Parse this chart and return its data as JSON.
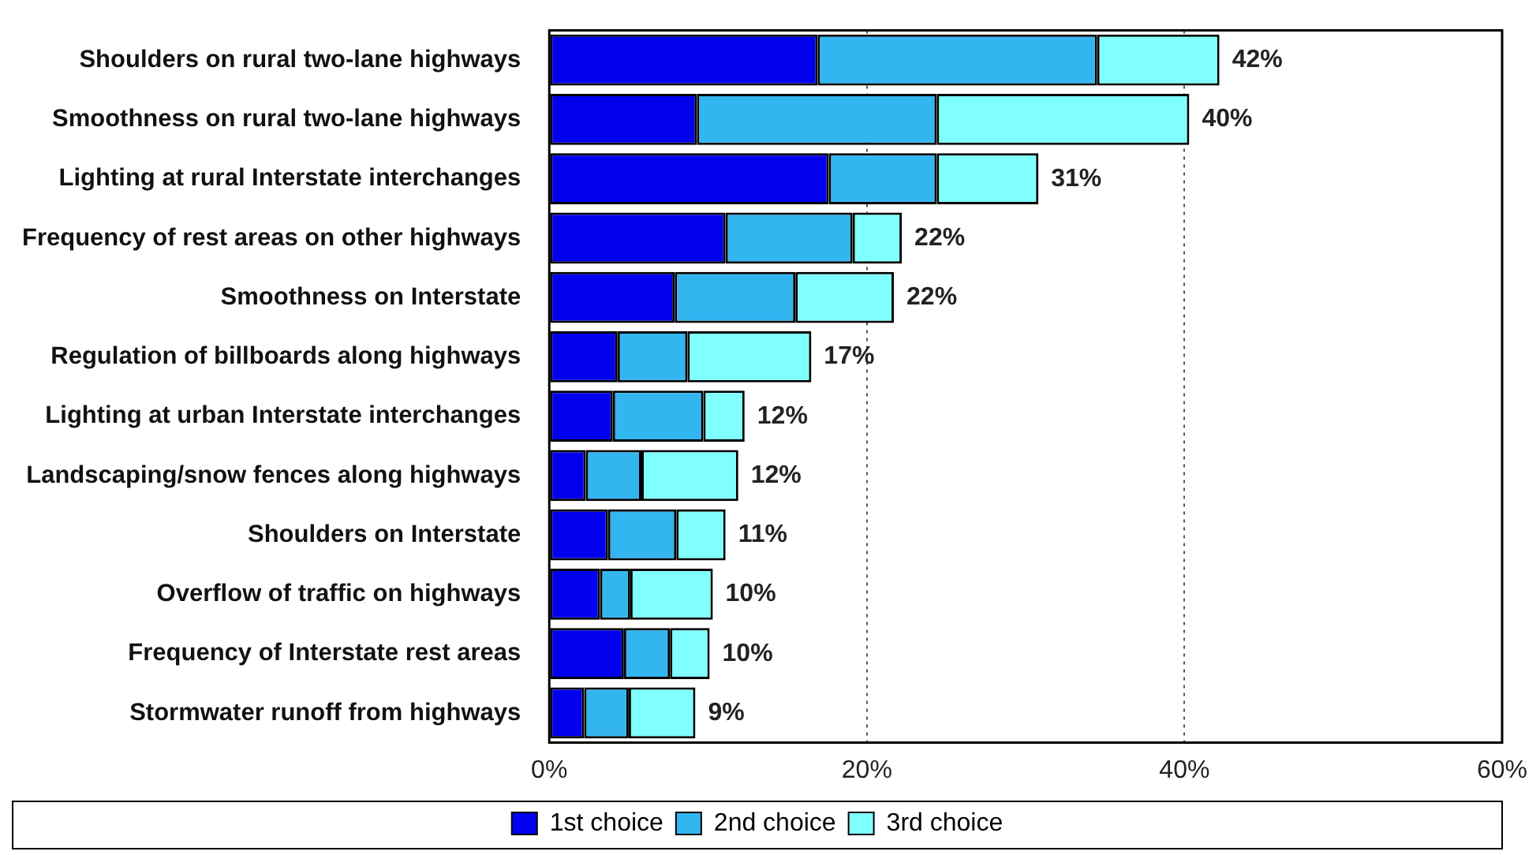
{
  "chart_data": {
    "type": "bar",
    "orientation": "horizontal",
    "stacked": true,
    "categories": [
      "Shoulders on rural two-lane highways",
      "Smoothness on rural two-lane highways",
      "Lighting at rural Interstate interchanges",
      "Frequency of rest areas on other highways",
      "Smoothness on Interstate",
      "Regulation of billboards along highways",
      "Lighting at urban Interstate interchanges",
      "Landscaping/snow fences along highways",
      "Shoulders on Interstate",
      "Overflow of traffic on highways",
      "Frequency of Interstate rest areas",
      "Stormwater runoff from highways"
    ],
    "series": [
      {
        "name": "1st choice",
        "color": "#0000ee",
        "values": [
          16.9,
          9.3,
          17.6,
          11.1,
          7.9,
          4.3,
          4.0,
          2.3,
          3.7,
          3.2,
          4.7,
          2.2
        ]
      },
      {
        "name": "2nd choice",
        "color": "#33b5f0",
        "values": [
          17.6,
          15.1,
          6.8,
          8.0,
          7.6,
          4.4,
          5.7,
          3.5,
          4.3,
          1.9,
          2.9,
          2.8
        ]
      },
      {
        "name": "3rd choice",
        "color": "#80ffff",
        "values": [
          7.7,
          15.9,
          6.4,
          3.1,
          6.2,
          7.8,
          2.6,
          6.1,
          3.1,
          5.2,
          2.5,
          4.2
        ]
      }
    ],
    "totals": [
      "42%",
      "40%",
      "31%",
      "22%",
      "22%",
      "17%",
      "12%",
      "12%",
      "11%",
      "10%",
      "10%",
      "9%"
    ],
    "xlim": [
      0,
      60
    ],
    "xticks": [
      {
        "value": 0,
        "label": "0%"
      },
      {
        "value": 20,
        "label": "20%"
      },
      {
        "value": 40,
        "label": "40%"
      },
      {
        "value": 60,
        "label": "60%"
      }
    ],
    "grid": "x",
    "legend": "bottom"
  }
}
